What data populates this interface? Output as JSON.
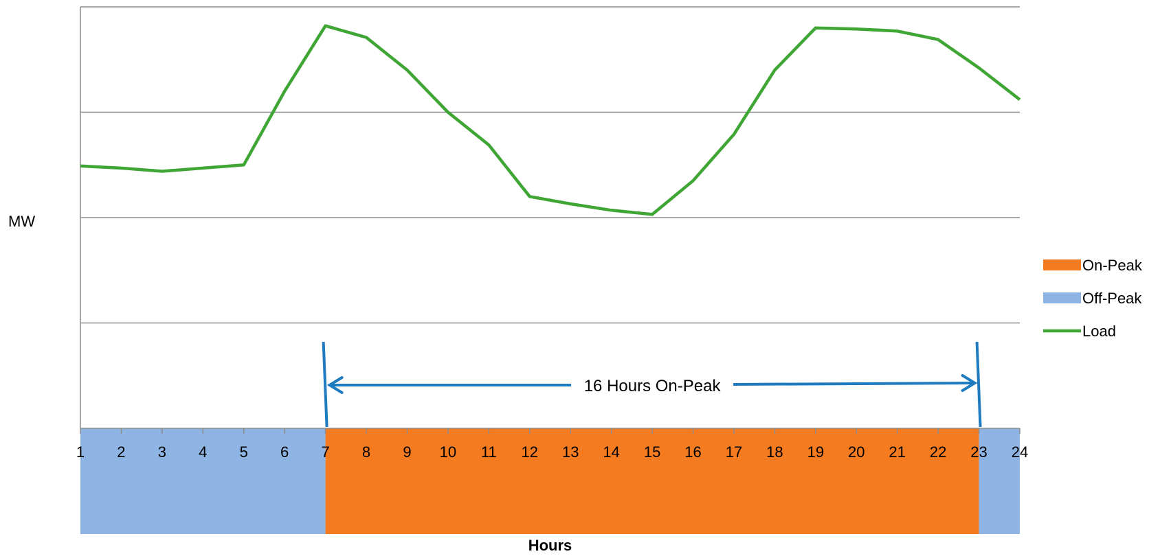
{
  "chart_data": {
    "type": "line",
    "title": "",
    "xlabel": "Hours",
    "ylabel": "MW",
    "x": [
      1,
      2,
      3,
      4,
      5,
      6,
      7,
      8,
      9,
      10,
      11,
      12,
      13,
      14,
      15,
      16,
      17,
      18,
      19,
      20,
      21,
      22,
      23,
      24
    ],
    "tick_labels": [
      "1",
      "2",
      "3",
      "4",
      "5",
      "6",
      "7",
      "8",
      "9",
      "10",
      "11",
      "12",
      "13",
      "14",
      "15",
      "16",
      "17",
      "18",
      "19",
      "20",
      "21",
      "22",
      "23",
      "24"
    ],
    "xlim": [
      1,
      24
    ],
    "ylim": [
      0,
      4
    ],
    "y_ticks_labeled": false,
    "grid": true,
    "series": [
      {
        "name": "Load",
        "color": "#3FA535",
        "values": [
          2.49,
          2.47,
          2.44,
          2.47,
          2.5,
          3.2,
          3.82,
          3.71,
          3.4,
          3.0,
          2.69,
          2.2,
          2.13,
          2.07,
          2.03,
          2.35,
          2.79,
          3.4,
          3.8,
          3.79,
          3.77,
          3.69,
          3.42,
          3.12
        ]
      }
    ],
    "bands": [
      {
        "name": "Off-Peak",
        "color": "#8EB4E3",
        "from": 1,
        "to": 7
      },
      {
        "name": "On-Peak",
        "color": "#F47B20",
        "from": 7,
        "to": 23
      },
      {
        "name": "Off-Peak",
        "color": "#8EB4E3",
        "from": 23,
        "to": 24
      }
    ],
    "legend": {
      "placement": "right",
      "entries": [
        {
          "label": "On-Peak",
          "kind": "box",
          "color": "#F47B20"
        },
        {
          "label": "Off-Peak",
          "kind": "box",
          "color": "#8EB4E3"
        },
        {
          "label": "Load",
          "kind": "line",
          "color": "#3FA535"
        }
      ]
    },
    "annotation": {
      "text": "16 Hours On-Peak",
      "from": 7,
      "to": 23,
      "color": "#1F7BC0"
    }
  }
}
